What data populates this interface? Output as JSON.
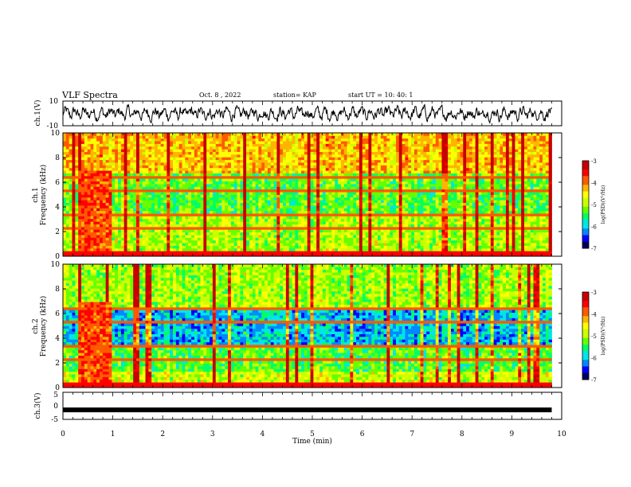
{
  "header": {
    "title": "VLF Spectra",
    "date": "Oct. 8 , 2022",
    "station": "station= KAP",
    "start_ut": "start UT = 10: 40: 1"
  },
  "colors": {
    "trace": "#000000",
    "colormap": [
      "#00005a",
      "#0000ff",
      "#0088ff",
      "#00e6e6",
      "#00ff66",
      "#66ff00",
      "#ccff00",
      "#ffff00",
      "#ffb400",
      "#ff5a00",
      "#ff0000",
      "#c80000"
    ]
  },
  "chart_data": [
    {
      "type": "line",
      "panel": "ch1-waveform",
      "ylabel": "ch.1(V)",
      "ylim": [
        -10,
        10
      ],
      "ytick_labels": [
        "10",
        "-10"
      ],
      "xlim": [
        0,
        10
      ],
      "description_values": "noisy waveform oscillating roughly between -6 and 6 V over 0-9.8 min"
    },
    {
      "type": "heatmap",
      "panel": "ch1-spectrogram",
      "ylabel_top": "ch.1",
      "ylabel": "Frequency (kHz)",
      "ylim": [
        0,
        10
      ],
      "ytick_labels": [
        "0",
        "2",
        "4",
        "6",
        "8",
        "10"
      ],
      "xlim": [
        0,
        10
      ],
      "data_end_min": 9.8,
      "colorbar": {
        "label": "log(PSD)(V²/Hz)",
        "range": [
          -7,
          -3
        ],
        "tick_labels": [
          "-3",
          "-4",
          "-5",
          "-6",
          "-7"
        ]
      }
    },
    {
      "type": "heatmap",
      "panel": "ch2-spectrogram",
      "ylabel_top": "ch.2",
      "ylabel": "Frequency (kHz)",
      "ylim": [
        0,
        10
      ],
      "ytick_labels": [
        "0",
        "2",
        "4",
        "6",
        "8",
        "10"
      ],
      "xlim": [
        0,
        10
      ],
      "data_end_min": 9.8,
      "colorbar": {
        "label": "log(PSD)(V²/Hz)",
        "range": [
          -7,
          -3
        ],
        "tick_labels": [
          "-3",
          "-4",
          "-5",
          "-6",
          "-7"
        ]
      }
    },
    {
      "type": "line",
      "panel": "ch3-waveform",
      "ylabel": "ch.3(V)",
      "ylim": [
        -5,
        5
      ],
      "ytick_labels": [
        "5",
        "0",
        "-5"
      ],
      "xlim": [
        0,
        10
      ],
      "values_constant": -1.5
    }
  ],
  "xaxis": {
    "label": "Time (min)",
    "tick_labels": [
      "0",
      "1",
      "2",
      "3",
      "4",
      "5",
      "6",
      "7",
      "8",
      "9",
      "10"
    ]
  }
}
